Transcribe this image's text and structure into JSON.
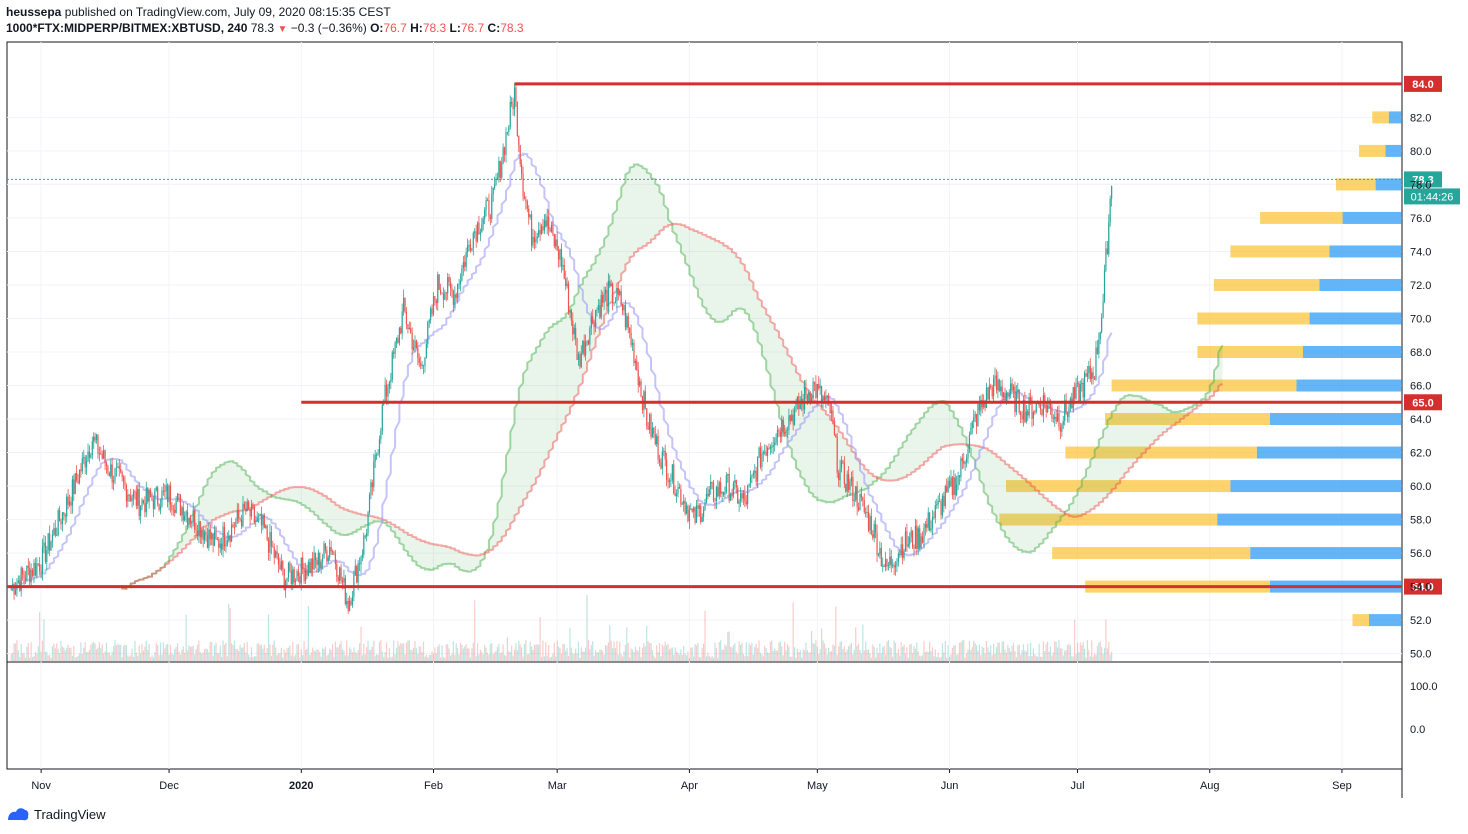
{
  "header": {
    "author": "heussepa",
    "published_text": "published on TradingView.com, July 09, 2020 08:15:35 CEST",
    "symbol": "1000*FTX:MIDPERP/BITMEX:XBTUSD, 240",
    "last": "78.3",
    "change": "−0.3 (−0.36%)",
    "o_label": "O:",
    "o_value": "76.7",
    "h_label": "H:",
    "h_value": "78.3",
    "l_label": "L:",
    "l_value": "76.7",
    "c_label": "C:",
    "c_value": "78.3"
  },
  "footer": {
    "brand": "TradingView"
  },
  "colors": {
    "up": "#26a69a",
    "down": "#ef5350",
    "level_line": "#d32f2f",
    "cloud_green": "#4caf50",
    "cloud_red": "#ef5350",
    "baseline": "#9c9cf7",
    "price_tag": "#26a69a",
    "vp_up": "#2196f3",
    "vp_down": "#fbc02d"
  },
  "chart_data": {
    "type": "candlestick",
    "title": "",
    "xlabel": "",
    "ylabel": "",
    "ylim": [
      49.5,
      86.5
    ],
    "grid": true,
    "y_ticks": [
      "50.0",
      "52.0",
      "54.0",
      "56.0",
      "58.0",
      "60.0",
      "62.0",
      "64.0",
      "66.0",
      "68.0",
      "70.0",
      "72.0",
      "74.0",
      "76.0",
      "78.0",
      "80.0",
      "82.0"
    ],
    "x_ticks": [
      "Nov",
      "Dec",
      "2020",
      "Feb",
      "Mar",
      "Apr",
      "May",
      "Jun",
      "Jul",
      "Aug",
      "Sep"
    ],
    "oscillator_ticks": [
      "100.0",
      "0.0"
    ],
    "horizontal_levels": [
      {
        "label": "84.0",
        "value": 84.0
      },
      {
        "label": "65.0",
        "value": 65.0
      },
      {
        "label": "54.0",
        "value": 54.0
      }
    ],
    "current_price": {
      "label": "78.3",
      "value": 78.3,
      "countdown": "01:44:26"
    },
    "price_path": [
      [
        "2019-10-25",
        54.0
      ],
      [
        "2019-11-01",
        55.5
      ],
      [
        "2019-11-08",
        59.5
      ],
      [
        "2019-11-13",
        62.8
      ],
      [
        "2019-11-17",
        61.0
      ],
      [
        "2019-11-24",
        59.0
      ],
      [
        "2019-12-01",
        59.5
      ],
      [
        "2019-12-07",
        58.0
      ],
      [
        "2019-12-12",
        56.5
      ],
      [
        "2019-12-19",
        58.5
      ],
      [
        "2019-12-23",
        57.5
      ],
      [
        "2019-12-28",
        54.5
      ],
      [
        "2020-01-01",
        55.0
      ],
      [
        "2020-01-05",
        55.5
      ],
      [
        "2020-01-08",
        56.5
      ],
      [
        "2020-01-12",
        53.0
      ],
      [
        "2020-01-16",
        57.0
      ],
      [
        "2020-01-20",
        64.5
      ],
      [
        "2020-01-25",
        70.5
      ],
      [
        "2020-01-29",
        67.0
      ],
      [
        "2020-02-02",
        72.0
      ],
      [
        "2020-02-06",
        71.5
      ],
      [
        "2020-02-10",
        75.0
      ],
      [
        "2020-02-15",
        77.0
      ],
      [
        "2020-02-20",
        83.5
      ],
      [
        "2020-02-22",
        78.0
      ],
      [
        "2020-02-24",
        75.0
      ],
      [
        "2020-02-27",
        76.0
      ],
      [
        "2020-03-02",
        73.5
      ],
      [
        "2020-03-06",
        67.5
      ],
      [
        "2020-03-10",
        70.5
      ],
      [
        "2020-03-13",
        71.5
      ],
      [
        "2020-03-16",
        71.0
      ],
      [
        "2020-03-19",
        68.0
      ],
      [
        "2020-03-22",
        64.0
      ],
      [
        "2020-03-25",
        62.0
      ],
      [
        "2020-03-29",
        60.0
      ],
      [
        "2020-04-02",
        58.0
      ],
      [
        "2020-04-06",
        59.5
      ],
      [
        "2020-04-10",
        60.0
      ],
      [
        "2020-04-14",
        59.0
      ],
      [
        "2020-04-18",
        62.0
      ],
      [
        "2020-04-22",
        63.5
      ],
      [
        "2020-04-26",
        64.5
      ],
      [
        "2020-04-30",
        66.0
      ],
      [
        "2020-05-04",
        64.5
      ],
      [
        "2020-05-06",
        61.0
      ],
      [
        "2020-05-10",
        59.5
      ],
      [
        "2020-05-14",
        57.5
      ],
      [
        "2020-05-17",
        55.0
      ],
      [
        "2020-05-21",
        56.5
      ],
      [
        "2020-05-25",
        57.0
      ],
      [
        "2020-05-29",
        58.5
      ],
      [
        "2020-06-03",
        60.5
      ],
      [
        "2020-06-07",
        64.0
      ],
      [
        "2020-06-11",
        66.0
      ],
      [
        "2020-06-15",
        65.5
      ],
      [
        "2020-06-19",
        64.5
      ],
      [
        "2020-06-23",
        65.0
      ],
      [
        "2020-06-27",
        64.0
      ],
      [
        "2020-07-01",
        65.5
      ],
      [
        "2020-07-05",
        67.0
      ],
      [
        "2020-07-07",
        71.0
      ],
      [
        "2020-07-09",
        78.3
      ]
    ],
    "volume_profile": [
      {
        "price": 82.0,
        "up": 0.04,
        "down": 0.05
      },
      {
        "price": 80.0,
        "up": 0.05,
        "down": 0.08
      },
      {
        "price": 78.0,
        "up": 0.08,
        "down": 0.12
      },
      {
        "price": 76.0,
        "up": 0.18,
        "down": 0.25
      },
      {
        "price": 74.0,
        "up": 0.22,
        "down": 0.3
      },
      {
        "price": 72.0,
        "up": 0.25,
        "down": 0.32
      },
      {
        "price": 70.0,
        "up": 0.28,
        "down": 0.34
      },
      {
        "price": 68.0,
        "up": 0.3,
        "down": 0.32
      },
      {
        "price": 66.0,
        "up": 0.32,
        "down": 0.56
      },
      {
        "price": 64.0,
        "up": 0.4,
        "down": 0.5
      },
      {
        "price": 62.0,
        "up": 0.44,
        "down": 0.58
      },
      {
        "price": 60.0,
        "up": 0.52,
        "down": 0.68
      },
      {
        "price": 58.0,
        "up": 0.56,
        "down": 0.66
      },
      {
        "price": 56.0,
        "up": 0.46,
        "down": 0.6
      },
      {
        "price": 54.0,
        "up": 0.4,
        "down": 0.56
      },
      {
        "price": 52.0,
        "up": 0.1,
        "down": 0.05
      }
    ]
  }
}
